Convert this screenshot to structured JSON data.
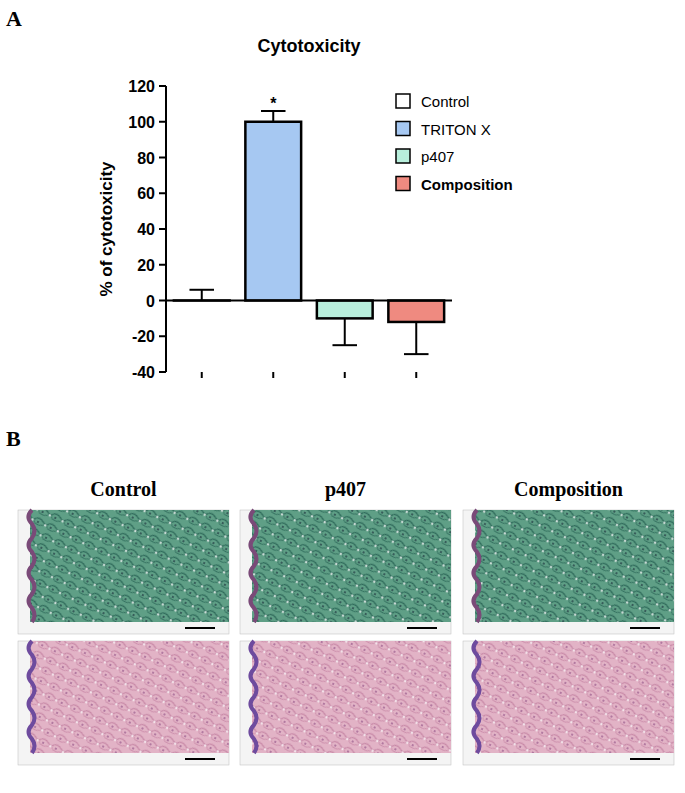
{
  "chart_data": {
    "type": "bar",
    "title": "Cytotoxicity",
    "y_label": "% of cytotoxicity",
    "categories": [
      "Control",
      "TRITON X",
      "p407",
      "Composition"
    ],
    "values": [
      0,
      100,
      -10,
      -12
    ],
    "errors": [
      6,
      6,
      15,
      18
    ],
    "colors": [
      "#ffffff",
      "#a6c8f2",
      "#b8efdc",
      "#ef8a80"
    ],
    "ylim": [
      -40,
      120
    ],
    "yticks": [
      -40,
      -20,
      0,
      20,
      40,
      60,
      80,
      100,
      120
    ],
    "grid": false,
    "legend": "right",
    "annotations": [
      {
        "text": "*",
        "category": "TRITON X"
      }
    ]
  },
  "figure": {
    "panel_labels": [
      "A",
      "B"
    ],
    "histology_columns": [
      "Control",
      "p407",
      "Composition"
    ]
  }
}
